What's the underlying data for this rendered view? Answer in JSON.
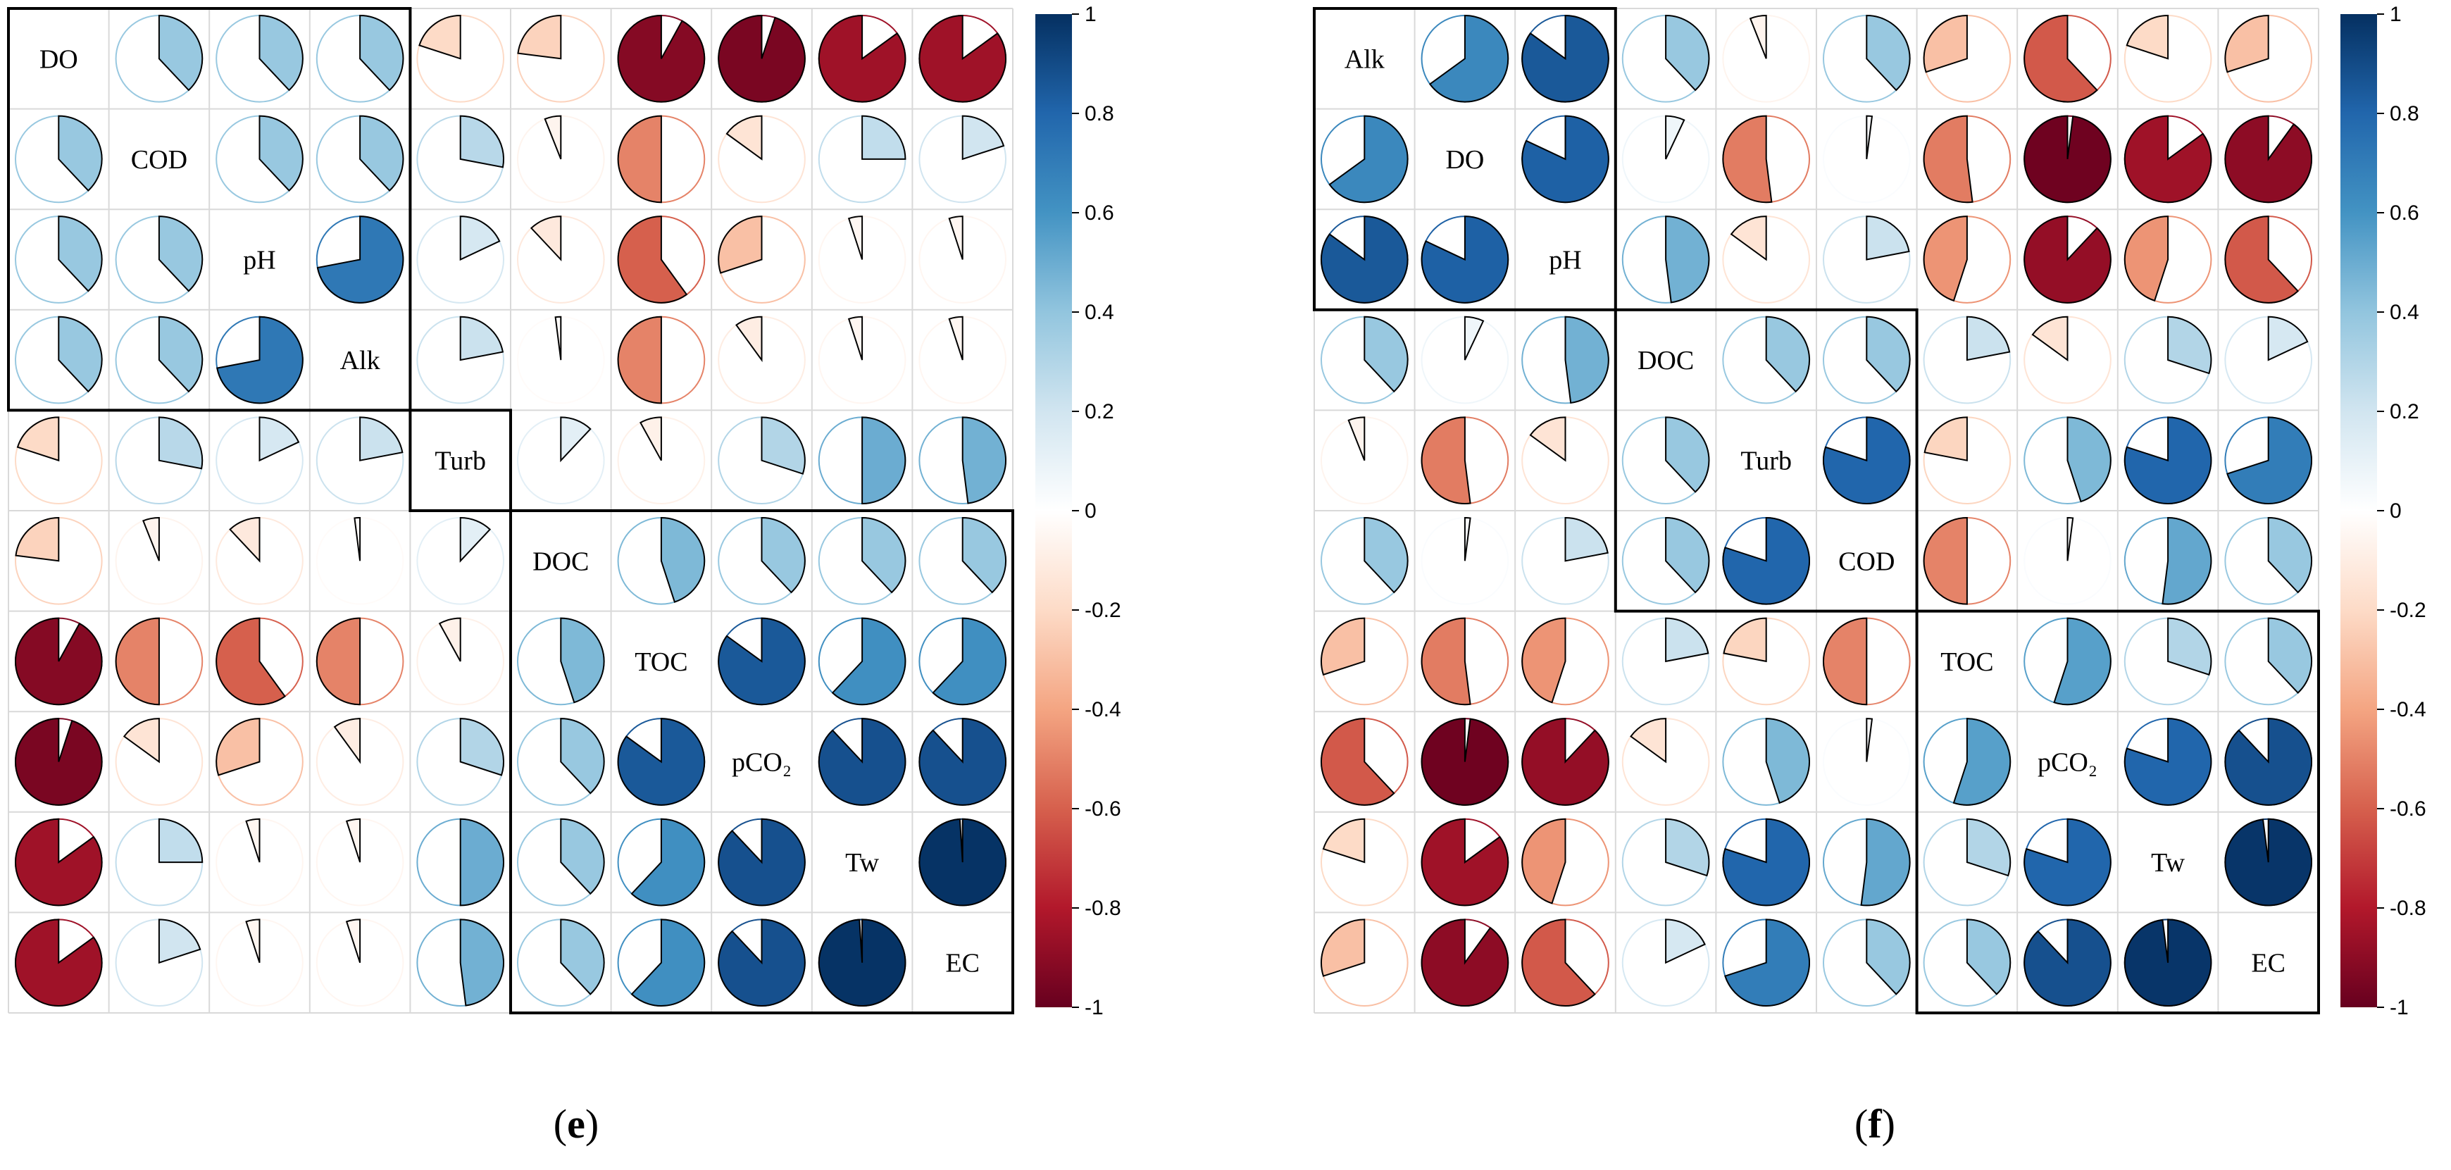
{
  "figure": {
    "panels": [
      {
        "letter": "e"
      },
      {
        "letter": "f"
      }
    ],
    "colorbar_ticks": [
      "1",
      "0.8",
      "0.6",
      "0.4",
      "0.2",
      "0",
      "-0.2",
      "-0.4",
      "-0.6",
      "-0.8",
      "-1"
    ]
  },
  "colors": {
    "negative_strong": "#67001f",
    "neutral": "#ffffff",
    "positive_strong": "#053061"
  },
  "chart_data": [
    {
      "type": "heatmap",
      "panel": "e",
      "glyph": "pie",
      "labels": [
        "DO",
        "COD",
        "pH",
        "Alk",
        "Turb",
        "DOC",
        "TOC",
        "pCO2",
        "Tw",
        "EC"
      ],
      "label_display": [
        "DO",
        "COD",
        "pH",
        "Alk",
        "Turb",
        "DOC",
        "TOC",
        "pCO₂",
        "Tw",
        "EC"
      ],
      "clusters": [
        [
          1,
          4
        ],
        [
          5,
          5
        ],
        [
          6,
          10
        ]
      ],
      "color_range": [
        -1,
        1
      ],
      "matrix": [
        [
          1,
          0.38,
          0.38,
          0.38,
          -0.2,
          -0.23,
          -0.92,
          -0.95,
          -0.85,
          -0.85
        ],
        [
          0.38,
          1,
          0.38,
          0.38,
          0.28,
          -0.06,
          -0.5,
          -0.15,
          0.25,
          0.2
        ],
        [
          0.38,
          0.38,
          1,
          0.72,
          0.18,
          -0.12,
          -0.6,
          -0.3,
          -0.05,
          -0.05
        ],
        [
          0.38,
          0.38,
          0.72,
          1,
          0.22,
          -0.02,
          -0.5,
          -0.1,
          -0.05,
          -0.05
        ],
        [
          -0.2,
          0.28,
          0.18,
          0.22,
          1,
          0.12,
          -0.08,
          0.3,
          0.5,
          0.48
        ],
        [
          -0.23,
          -0.06,
          -0.12,
          -0.02,
          0.12,
          1,
          0.45,
          0.38,
          0.38,
          0.38
        ],
        [
          -0.92,
          -0.5,
          -0.6,
          -0.5,
          -0.08,
          0.45,
          1,
          0.85,
          0.62,
          0.62
        ],
        [
          -0.95,
          -0.15,
          -0.3,
          -0.1,
          0.3,
          0.38,
          0.85,
          1,
          0.88,
          0.88
        ],
        [
          -0.85,
          0.25,
          -0.05,
          -0.05,
          0.5,
          0.38,
          0.62,
          0.88,
          1,
          0.99
        ],
        [
          -0.85,
          0.2,
          -0.05,
          -0.05,
          0.48,
          0.38,
          0.62,
          0.88,
          0.99,
          1
        ]
      ]
    },
    {
      "type": "heatmap",
      "panel": "f",
      "glyph": "pie",
      "labels": [
        "Alk",
        "DO",
        "pH",
        "DOC",
        "Turb",
        "COD",
        "TOC",
        "pCO2",
        "Tw",
        "EC"
      ],
      "label_display": [
        "Alk",
        "DO",
        "pH",
        "DOC",
        "Turb",
        "COD",
        "TOC",
        "pCO₂",
        "Tw",
        "EC"
      ],
      "clusters": [
        [
          1,
          3
        ],
        [
          4,
          6
        ],
        [
          7,
          10
        ]
      ],
      "color_range": [
        -1,
        1
      ],
      "matrix": [
        [
          1,
          0.65,
          0.85,
          0.38,
          -0.06,
          0.38,
          -0.3,
          -0.62,
          -0.2,
          -0.3
        ],
        [
          0.65,
          1,
          0.82,
          0.07,
          -0.52,
          0.02,
          -0.52,
          -0.98,
          -0.85,
          -0.9
        ],
        [
          0.85,
          0.82,
          1,
          0.48,
          -0.15,
          0.22,
          -0.45,
          -0.88,
          -0.45,
          -0.62
        ],
        [
          0.38,
          0.07,
          0.48,
          1,
          0.38,
          0.38,
          0.22,
          -0.15,
          0.3,
          0.18
        ],
        [
          -0.06,
          -0.52,
          -0.15,
          0.38,
          1,
          0.8,
          -0.22,
          0.45,
          0.8,
          0.7
        ],
        [
          0.38,
          0.02,
          0.22,
          0.38,
          0.8,
          1,
          -0.5,
          0.02,
          0.52,
          0.38
        ],
        [
          -0.3,
          -0.52,
          -0.45,
          0.22,
          -0.22,
          -0.5,
          1,
          0.55,
          0.3,
          0.38
        ],
        [
          -0.62,
          -0.98,
          -0.88,
          -0.15,
          0.45,
          0.02,
          0.55,
          1,
          0.8,
          0.88
        ],
        [
          -0.2,
          -0.85,
          -0.45,
          0.3,
          0.8,
          0.52,
          0.3,
          0.8,
          1,
          0.98
        ],
        [
          -0.3,
          -0.9,
          -0.62,
          0.18,
          0.7,
          0.38,
          0.38,
          0.88,
          0.98,
          1
        ]
      ]
    }
  ]
}
